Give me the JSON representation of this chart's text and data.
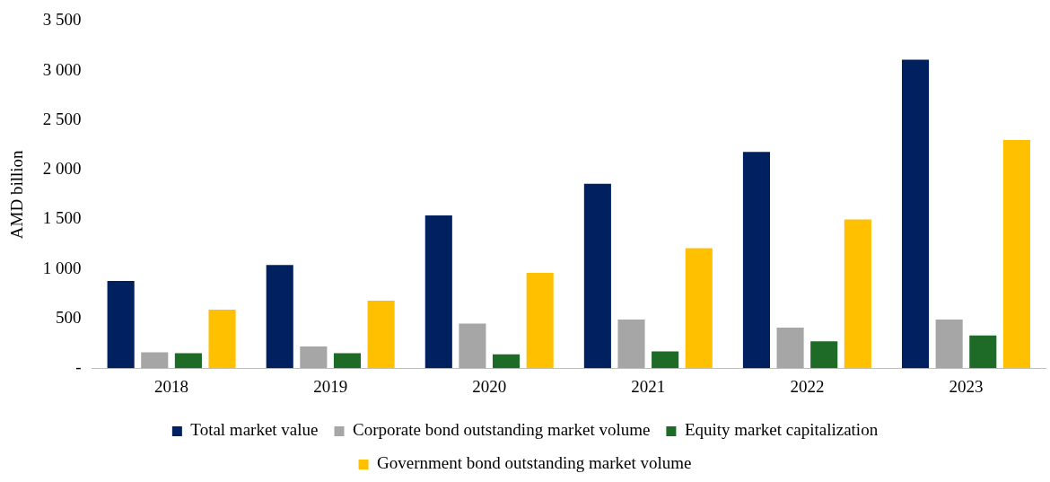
{
  "chart_data": {
    "type": "bar",
    "ylabel": "AMD billion",
    "categories": [
      "2018",
      "2019",
      "2020",
      "2021",
      "2022",
      "2023"
    ],
    "series": [
      {
        "name": "Total market value",
        "color": "#002060",
        "values": [
          880,
          1040,
          1540,
          1860,
          2180,
          3110
        ]
      },
      {
        "name": "Corporate bond outstanding market volume",
        "color": "#a6a6a6",
        "values": [
          160,
          220,
          450,
          490,
          410,
          490
        ]
      },
      {
        "name": "Equity market capitalization",
        "color": "#1e6b28",
        "values": [
          150,
          150,
          140,
          170,
          270,
          330
        ]
      },
      {
        "name": "Government bond outstanding market volume",
        "color": "#ffc000",
        "values": [
          590,
          680,
          960,
          1210,
          1500,
          2300
        ]
      }
    ],
    "ylim": [
      0,
      3500
    ],
    "yticks": [
      {
        "value": 0,
        "label": "-"
      },
      500,
      {
        "value": 1000,
        "label": "1 000"
      },
      {
        "value": 1500,
        "label": "1 500"
      },
      {
        "value": 2000,
        "label": "2 000"
      },
      {
        "value": 2500,
        "label": "2 500"
      },
      {
        "value": 3000,
        "label": "3 000"
      },
      {
        "value": 3500,
        "label": "3 500"
      }
    ],
    "grid": false,
    "legend": "bottom"
  }
}
